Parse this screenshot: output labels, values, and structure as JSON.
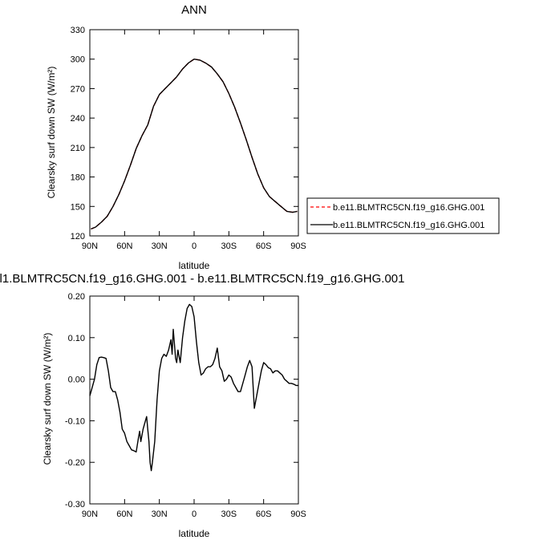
{
  "chart_data": [
    {
      "type": "line",
      "title": "ANN",
      "xlabel": "latitude",
      "ylabel": "Clearsky surf down SW (W/m²)",
      "xlim": [
        90,
        -90
      ],
      "ylim": [
        120,
        330
      ],
      "x_ticks": [
        "90N",
        "60N",
        "30N",
        "0",
        "30S",
        "60S",
        "90S"
      ],
      "y_ticks": [
        "120",
        "150",
        "180",
        "210",
        "240",
        "270",
        "300",
        "330"
      ],
      "legend_position": "right",
      "series": [
        {
          "name": "b.e11.BLMTRC5CN.f19_g16.GHG.001",
          "color": "#ff0000",
          "dash": "dashed",
          "x": [
            89,
            85,
            80,
            75,
            70,
            65,
            60,
            55,
            50,
            45,
            40,
            35,
            30,
            25,
            20,
            15,
            10,
            5,
            0,
            -5,
            -10,
            -15,
            -20,
            -25,
            -30,
            -35,
            -40,
            -45,
            -50,
            -55,
            -60,
            -65,
            -70,
            -75,
            -80,
            -85,
            -89
          ],
          "y": [
            127,
            129,
            134,
            140,
            150,
            162,
            176,
            192,
            209,
            222,
            233,
            252,
            264,
            270,
            276,
            282,
            290,
            296,
            300,
            299,
            296,
            292,
            285,
            277,
            265,
            251,
            235,
            218,
            200,
            183,
            169,
            160,
            155,
            150,
            145,
            144,
            145
          ]
        },
        {
          "name": "b.e11.BLMTRC5CN.f19_g16.GHG.001",
          "color": "#000000",
          "dash": "solid",
          "x": [
            89,
            85,
            80,
            75,
            70,
            65,
            60,
            55,
            50,
            45,
            40,
            35,
            30,
            25,
            20,
            15,
            10,
            5,
            0,
            -5,
            -10,
            -15,
            -20,
            -25,
            -30,
            -35,
            -40,
            -45,
            -50,
            -55,
            -60,
            -65,
            -70,
            -75,
            -80,
            -85,
            -89
          ],
          "y": [
            127,
            129,
            134,
            140,
            150,
            162,
            176,
            192,
            209,
            222,
            233,
            252,
            264,
            270,
            276,
            282,
            290,
            296,
            300,
            299,
            296,
            292,
            285,
            277,
            265,
            251,
            235,
            218,
            200,
            183,
            169,
            160,
            155,
            150,
            145,
            144,
            145
          ]
        }
      ]
    },
    {
      "type": "line",
      "title": "l1.BLMTRC5CN.f19_g16.GHG.001 - b.e11.BLMTRC5CN.f19_g16.GHG.001",
      "xlabel": "latitude",
      "ylabel": "Clearsky surf down SW (W/m²)",
      "xlim": [
        90,
        -90
      ],
      "ylim": [
        -0.3,
        0.2
      ],
      "x_ticks": [
        "90N",
        "60N",
        "30N",
        "0",
        "30S",
        "60S",
        "90S"
      ],
      "y_ticks": [
        "-0.30",
        "-0.20",
        "-0.10",
        "0.00",
        "0.10",
        "0.20"
      ],
      "series": [
        {
          "color": "#000000",
          "x": [
            90,
            88,
            86,
            84,
            82,
            80,
            78,
            76,
            74,
            72,
            70,
            68,
            66,
            64,
            62,
            60,
            58,
            56,
            54,
            52,
            50,
            48,
            47,
            46,
            44,
            42,
            41,
            40,
            39,
            38,
            37,
            36,
            34,
            32,
            30,
            28,
            26,
            24,
            22,
            20,
            19,
            18,
            16,
            15,
            14,
            12,
            10,
            8,
            6,
            4,
            2,
            0,
            -2,
            -4,
            -6,
            -8,
            -10,
            -12,
            -14,
            -16,
            -18,
            -20,
            -22,
            -24,
            -26,
            -28,
            -30,
            -32,
            -34,
            -36,
            -38,
            -40,
            -42,
            -44,
            -46,
            -48,
            -50,
            -52,
            -54,
            -56,
            -58,
            -60,
            -62,
            -64,
            -66,
            -68,
            -70,
            -72,
            -74,
            -76,
            -78,
            -80,
            -82,
            -84,
            -86,
            -88,
            -90
          ],
          "y": [
            -0.04,
            -0.02,
            0.0,
            0.035,
            0.052,
            0.053,
            0.052,
            0.05,
            0.02,
            -0.02,
            -0.03,
            -0.03,
            -0.05,
            -0.08,
            -0.12,
            -0.13,
            -0.15,
            -0.16,
            -0.17,
            -0.172,
            -0.175,
            -0.14,
            -0.125,
            -0.15,
            -0.12,
            -0.1,
            -0.09,
            -0.12,
            -0.15,
            -0.2,
            -0.22,
            -0.2,
            -0.15,
            -0.05,
            0.02,
            0.05,
            0.06,
            0.055,
            0.07,
            0.095,
            0.06,
            0.12,
            0.05,
            0.04,
            0.07,
            0.04,
            0.1,
            0.14,
            0.17,
            0.18,
            0.175,
            0.15,
            0.09,
            0.04,
            0.01,
            0.015,
            0.025,
            0.03,
            0.03,
            0.035,
            0.05,
            0.075,
            0.03,
            0.02,
            -0.005,
            0.0,
            0.01,
            0.005,
            -0.01,
            -0.02,
            -0.03,
            -0.03,
            -0.01,
            0.01,
            0.03,
            0.045,
            0.03,
            -0.07,
            -0.04,
            -0.01,
            0.02,
            0.04,
            0.035,
            0.028,
            0.025,
            0.015,
            0.02,
            0.02,
            0.015,
            0.01,
            0.0,
            -0.005,
            -0.01,
            -0.01,
            -0.012,
            -0.015,
            -0.015
          ]
        }
      ]
    }
  ]
}
